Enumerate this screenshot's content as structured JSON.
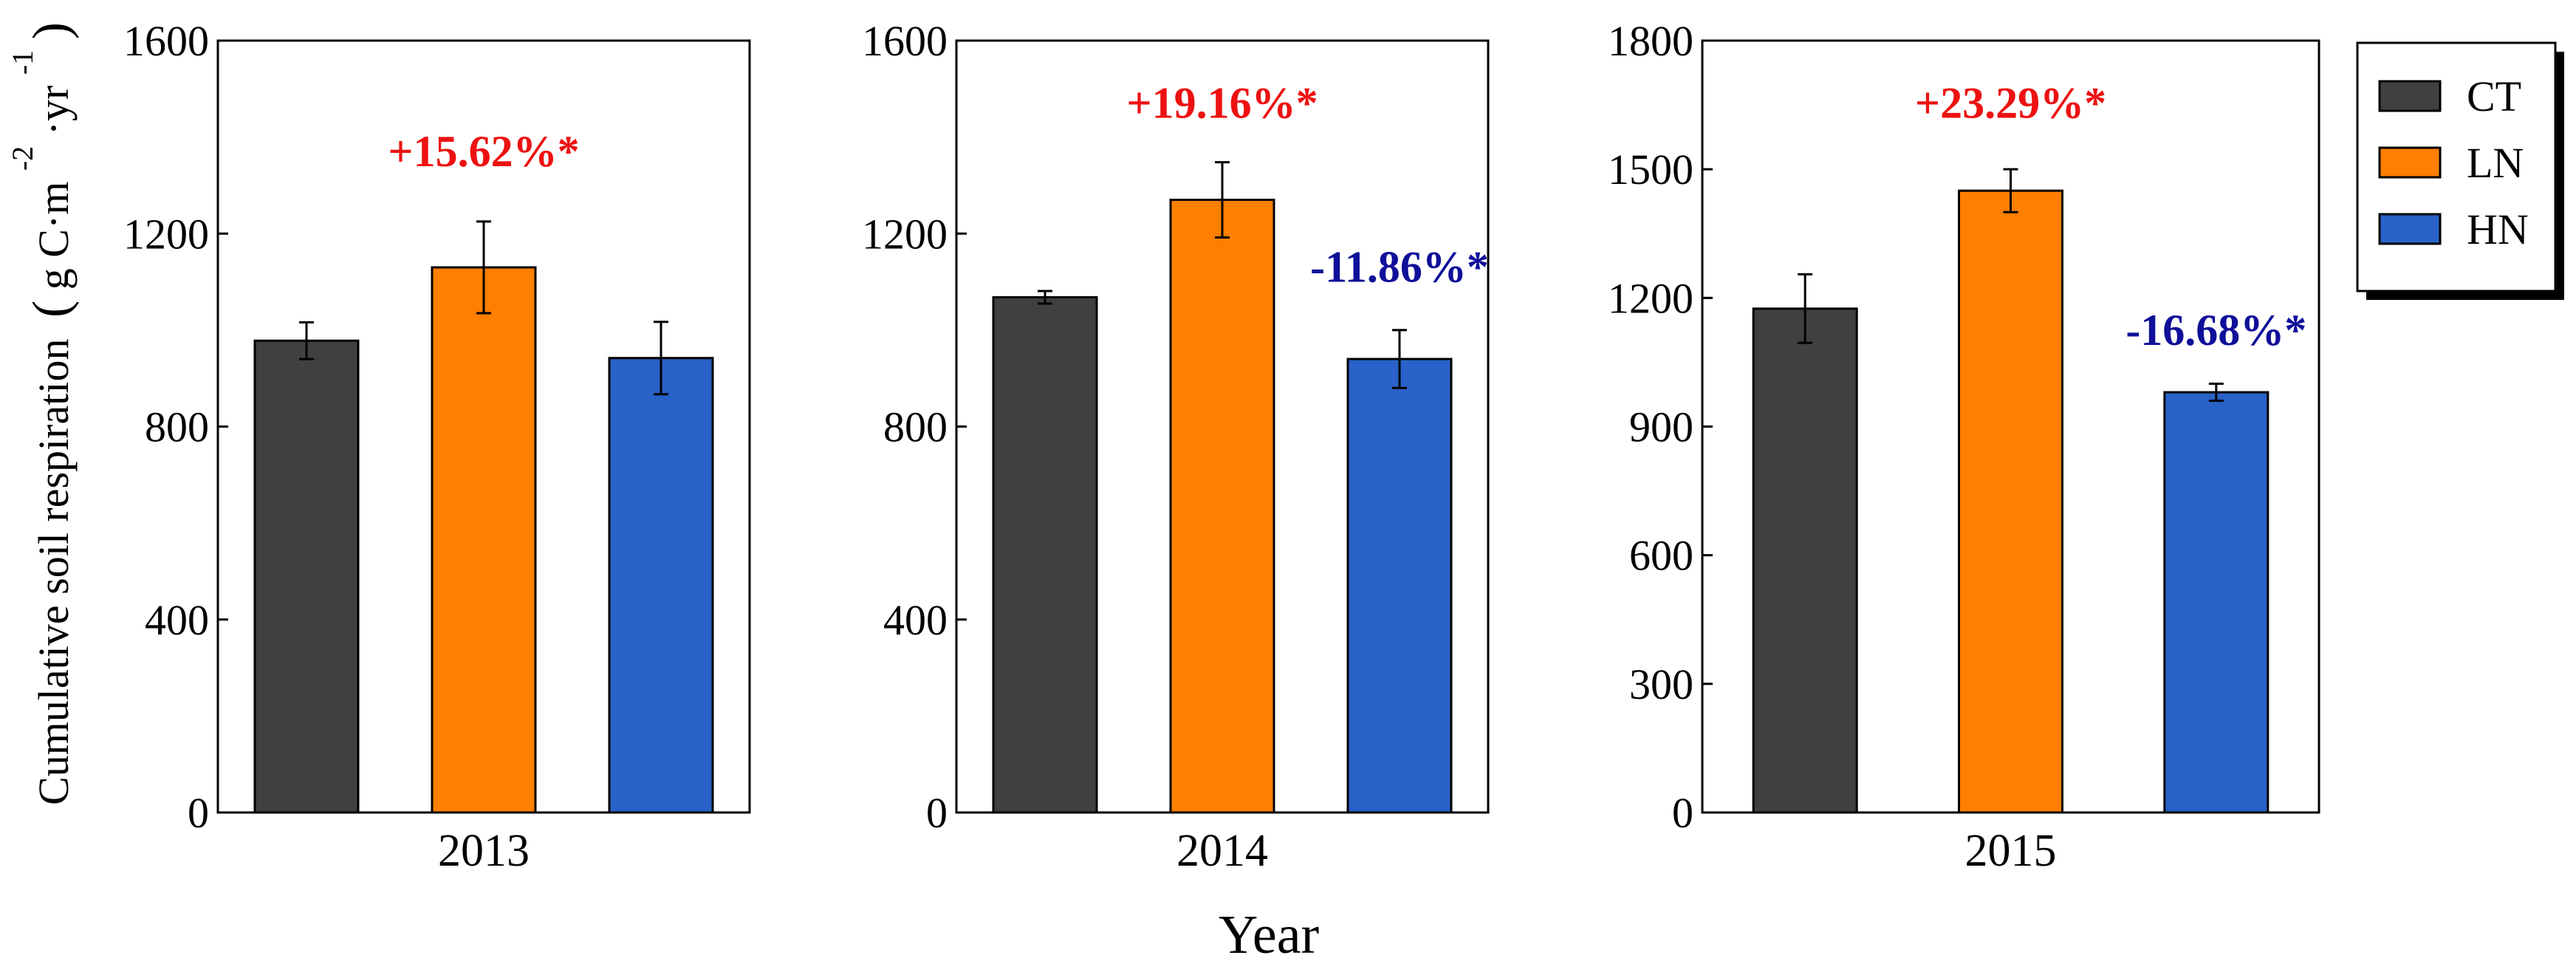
{
  "figure": {
    "ylabel_main": "Cumulative soil respiration",
    "ylabel_unit_g": "g C·m",
    "ylabel_unit_exp1": "-2",
    "ylabel_unit_yr": "·yr",
    "ylabel_unit_exp2": "-1",
    "xlabel": "Year"
  },
  "colors": {
    "CT": "#404040",
    "LN": "#ff7f00",
    "HN": "#2962c8",
    "increase": "#ee1111",
    "decrease": "#0f0f99"
  },
  "legend": {
    "placement": "right",
    "entries": [
      {
        "key": "CT",
        "label": "CT"
      },
      {
        "key": "LN",
        "label": "LN"
      },
      {
        "key": "HN",
        "label": "HN"
      }
    ]
  },
  "chart_data": [
    {
      "type": "bar",
      "categories": [
        "CT",
        "LN",
        "HN"
      ],
      "xlabel": "2013",
      "ylim": [
        0,
        1600
      ],
      "yticks": [
        0,
        400,
        800,
        1200,
        1600
      ],
      "series": [
        {
          "values": [
            978,
            1130,
            942
          ],
          "errors": [
            38,
            95,
            75
          ]
        }
      ],
      "annotations": [
        {
          "text": "+15.62%*",
          "category": "LN",
          "y": 1340,
          "kind": "increase"
        }
      ]
    },
    {
      "type": "bar",
      "categories": [
        "CT",
        "LN",
        "HN"
      ],
      "xlabel": "2014",
      "ylim": [
        0,
        1600
      ],
      "yticks": [
        0,
        400,
        800,
        1200,
        1600
      ],
      "series": [
        {
          "values": [
            1068,
            1270,
            940
          ],
          "errors": [
            13,
            78,
            60
          ]
        }
      ],
      "annotations": [
        {
          "text": "+19.16%*",
          "category": "LN",
          "y": 1440,
          "kind": "increase"
        },
        {
          "text": "-11.86%*",
          "category": "HN",
          "y": 1100,
          "kind": "decrease"
        }
      ]
    },
    {
      "type": "bar",
      "categories": [
        "CT",
        "LN",
        "HN"
      ],
      "xlabel": "2015",
      "ylim": [
        0,
        1800
      ],
      "yticks": [
        0,
        300,
        600,
        900,
        1200,
        1500,
        1800
      ],
      "series": [
        {
          "values": [
            1175,
            1450,
            980
          ],
          "errors": [
            80,
            50,
            20
          ]
        }
      ],
      "annotations": [
        {
          "text": "+23.29%*",
          "category": "LN",
          "y": 1620,
          "kind": "increase"
        },
        {
          "text": "-16.68%*",
          "category": "HN",
          "y": 1090,
          "kind": "decrease"
        }
      ]
    }
  ]
}
